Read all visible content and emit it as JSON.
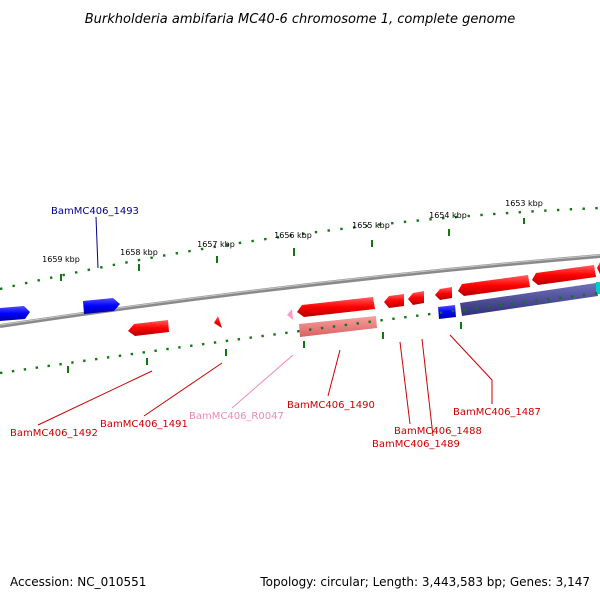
{
  "title": "Burkholderia ambifaria MC40-6 chromosome 1, complete genome",
  "footer": {
    "accession": "Accession: NC_010551",
    "summary": "Topology: circular; Length: 3,443,583 bp; Genes: 3,147"
  },
  "colors": {
    "forward_gene": "#ff0000",
    "reverse_gene": "#0000ff",
    "rna_gene": "#ff88cc",
    "pseudo_gene": "#ee6666",
    "hypothetical": "#4a4a99",
    "backbone": "#888888",
    "scale_dots": "#117711"
  },
  "scale": {
    "unit": "kbp",
    "tick_labels": [
      "1659 kbp",
      "1658 kbp",
      "1657 kbp",
      "1656 kbp",
      "1655 kbp",
      "1654 kbp",
      "1653 kbp"
    ]
  },
  "genes": [
    {
      "name": "BamMC406_1493",
      "strand": "reverse",
      "label_color": "#00008b"
    },
    {
      "name": "BamMC406_1492",
      "strand": "forward",
      "label_color": "#cc0000"
    },
    {
      "name": "BamMC406_1491",
      "strand": "forward",
      "label_color": "#cc0000"
    },
    {
      "name": "BamMC406_R0047",
      "strand": "forward",
      "label_color": "#ee88bb"
    },
    {
      "name": "BamMC406_1490",
      "strand": "forward",
      "label_color": "#cc0000"
    },
    {
      "name": "BamMC406_1488",
      "strand": "forward",
      "label_color": "#cc0000"
    },
    {
      "name": "BamMC406_1489",
      "strand": "forward",
      "label_color": "#cc0000"
    },
    {
      "name": "BamMC406_1487",
      "strand": "forward",
      "label_color": "#cc0000"
    }
  ]
}
